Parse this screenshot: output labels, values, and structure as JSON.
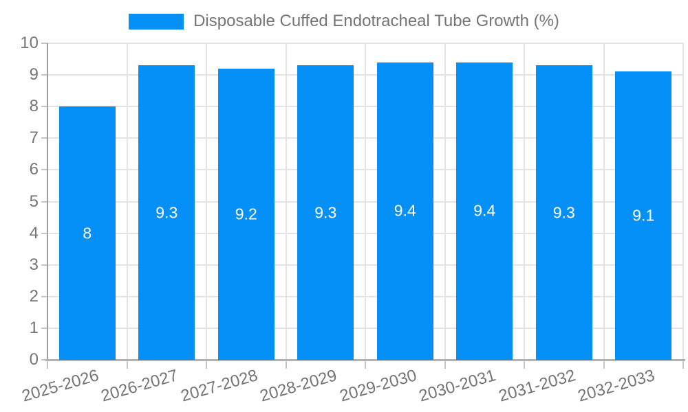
{
  "chart_data": {
    "type": "bar",
    "title": "Disposable Cuffed Endotracheal Tube Growth (%)",
    "categories": [
      "2025-2026",
      "2026-2027",
      "2027-2028",
      "2028-2029",
      "2029-2030",
      "2030-2031",
      "2031-2032",
      "2032-2033"
    ],
    "values": [
      8,
      9.3,
      9.2,
      9.3,
      9.4,
      9.4,
      9.3,
      9.1
    ],
    "bar_labels": [
      "8",
      "9.3",
      "9.2",
      "9.3",
      "9.4",
      "9.4",
      "9.3",
      "9.1"
    ],
    "xlabel": "",
    "ylabel": "",
    "ylim": [
      0,
      10
    ],
    "ytick_interval": 1,
    "ytick_labels": [
      "0",
      "1",
      "2",
      "3",
      "4",
      "5",
      "6",
      "7",
      "8",
      "9",
      "10"
    ],
    "grid": true,
    "legend_position": "top-center",
    "colors": {
      "bar": "#0590f8",
      "bar_label": "#ffffff",
      "axis_text": "#757575",
      "grid_line": "#e3e3e3",
      "y_axis_line": "#9e9e9e",
      "x_axis_line": "#b3b3b3",
      "tick_mark": "#c4c4c4",
      "background": "#ffffff"
    }
  }
}
